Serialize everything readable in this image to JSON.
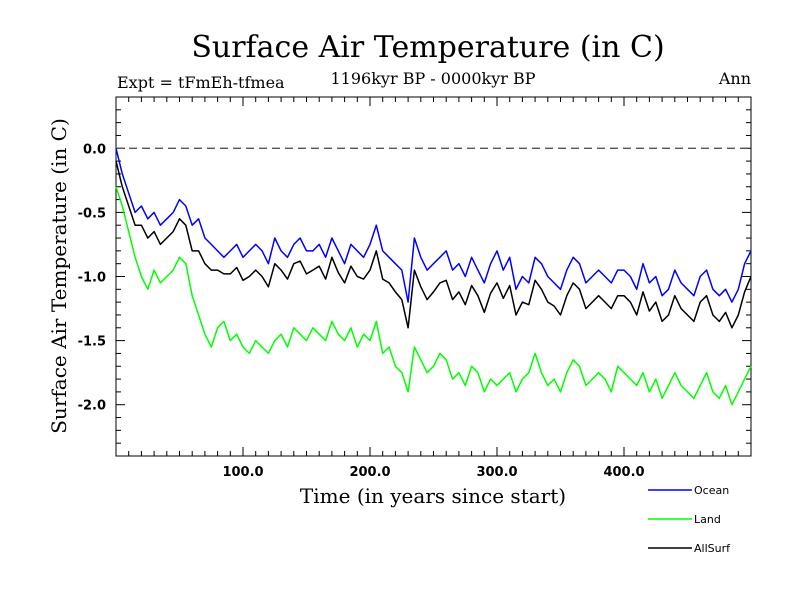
{
  "chart_data": {
    "type": "line",
    "title": "Surface Air Temperature (in C)",
    "subtitle_left": "Expt = tFmEh-tfmea",
    "subtitle_center": "1196kyr BP - 0000kyr BP",
    "subtitle_right": "Ann",
    "xlabel": "Time (in years since start)",
    "ylabel": "Surface Air Temperature (in C)",
    "xlim": [
      0,
      500
    ],
    "ylim": [
      -2.4,
      0.4
    ],
    "x_ticks": [
      100,
      200,
      300,
      400
    ],
    "x_tick_labels": [
      "100.0",
      "200.0",
      "300.0",
      "400.0"
    ],
    "y_ticks": [
      0,
      -0.5,
      -1,
      -1.5,
      -2
    ],
    "y_tick_labels": [
      "0.0",
      "-0.5",
      "-1.0",
      "-1.5",
      "-2.0"
    ],
    "reference_line": {
      "y": 0,
      "style": "dashed"
    },
    "x": [
      0,
      5,
      10,
      15,
      20,
      25,
      30,
      35,
      40,
      45,
      50,
      55,
      60,
      65,
      70,
      75,
      80,
      85,
      90,
      95,
      100,
      105,
      110,
      115,
      120,
      125,
      130,
      135,
      140,
      145,
      150,
      155,
      160,
      165,
      170,
      175,
      180,
      185,
      190,
      195,
      200,
      205,
      210,
      215,
      220,
      225,
      230,
      235,
      240,
      245,
      250,
      255,
      260,
      265,
      270,
      275,
      280,
      285,
      290,
      295,
      300,
      305,
      310,
      315,
      320,
      325,
      330,
      335,
      340,
      345,
      350,
      355,
      360,
      365,
      370,
      375,
      380,
      385,
      390,
      395,
      400,
      405,
      410,
      415,
      420,
      425,
      430,
      435,
      440,
      445,
      450,
      455,
      460,
      465,
      470,
      475,
      480,
      485,
      490,
      495,
      500
    ],
    "series": [
      {
        "name": "Ocean",
        "color": "#0000ff",
        "values": [
          0.0,
          -0.2,
          -0.35,
          -0.5,
          -0.45,
          -0.55,
          -0.5,
          -0.6,
          -0.55,
          -0.5,
          -0.4,
          -0.45,
          -0.6,
          -0.55,
          -0.7,
          -0.75,
          -0.8,
          -0.85,
          -0.8,
          -0.75,
          -0.85,
          -0.8,
          -0.75,
          -0.8,
          -0.9,
          -0.7,
          -0.8,
          -0.85,
          -0.75,
          -0.7,
          -0.8,
          -0.8,
          -0.75,
          -0.85,
          -0.7,
          -0.8,
          -0.9,
          -0.75,
          -0.8,
          -0.85,
          -0.75,
          -0.6,
          -0.8,
          -0.85,
          -0.9,
          -0.95,
          -1.2,
          -0.7,
          -0.85,
          -0.95,
          -0.9,
          -0.85,
          -0.8,
          -0.95,
          -0.9,
          -1.0,
          -0.85,
          -0.95,
          -1.05,
          -0.9,
          -0.8,
          -0.95,
          -0.85,
          -1.1,
          -1.0,
          -1.05,
          -0.85,
          -0.9,
          -1.0,
          -1.05,
          -1.1,
          -0.95,
          -0.85,
          -0.9,
          -1.05,
          -1.0,
          -0.95,
          -1.0,
          -1.05,
          -0.95,
          -0.95,
          -1.0,
          -1.1,
          -0.9,
          -1.05,
          -1.0,
          -1.15,
          -1.1,
          -0.95,
          -1.05,
          -1.1,
          -1.15,
          -1.0,
          -0.95,
          -1.1,
          -1.15,
          -1.1,
          -1.2,
          -1.1,
          -0.9,
          -0.8
        ]
      },
      {
        "name": "Land",
        "color": "#00ff00",
        "values": [
          -0.3,
          -0.45,
          -0.65,
          -0.85,
          -1.0,
          -1.1,
          -0.95,
          -1.05,
          -1.0,
          -0.95,
          -0.85,
          -0.9,
          -1.15,
          -1.3,
          -1.45,
          -1.55,
          -1.4,
          -1.35,
          -1.5,
          -1.45,
          -1.55,
          -1.6,
          -1.5,
          -1.55,
          -1.6,
          -1.5,
          -1.45,
          -1.55,
          -1.4,
          -1.45,
          -1.5,
          -1.4,
          -1.45,
          -1.5,
          -1.35,
          -1.45,
          -1.5,
          -1.4,
          -1.55,
          -1.45,
          -1.5,
          -1.35,
          -1.6,
          -1.55,
          -1.7,
          -1.75,
          -1.9,
          -1.55,
          -1.65,
          -1.75,
          -1.7,
          -1.6,
          -1.65,
          -1.8,
          -1.75,
          -1.85,
          -1.7,
          -1.75,
          -1.9,
          -1.8,
          -1.85,
          -1.8,
          -1.75,
          -1.9,
          -1.8,
          -1.75,
          -1.6,
          -1.75,
          -1.85,
          -1.8,
          -1.9,
          -1.75,
          -1.65,
          -1.7,
          -1.85,
          -1.8,
          -1.75,
          -1.8,
          -1.9,
          -1.7,
          -1.75,
          -1.8,
          -1.85,
          -1.75,
          -1.9,
          -1.8,
          -1.95,
          -1.85,
          -1.75,
          -1.85,
          -1.9,
          -1.95,
          -1.85,
          -1.75,
          -1.9,
          -1.95,
          -1.85,
          -2.0,
          -1.9,
          -1.8,
          -1.7
        ]
      },
      {
        "name": "AllSurf",
        "color": "#000000",
        "values": [
          -0.1,
          -0.3,
          -0.45,
          -0.6,
          -0.6,
          -0.7,
          -0.65,
          -0.75,
          -0.7,
          -0.65,
          -0.55,
          -0.6,
          -0.8,
          -0.8,
          -0.9,
          -0.95,
          -0.95,
          -0.98,
          -0.98,
          -0.93,
          -1.03,
          -1.0,
          -0.95,
          -1.0,
          -1.08,
          -0.9,
          -0.95,
          -1.02,
          -0.9,
          -0.88,
          -0.98,
          -0.95,
          -0.92,
          -1.02,
          -0.85,
          -0.97,
          -1.05,
          -0.92,
          -1.0,
          -1.02,
          -0.95,
          -0.8,
          -1.02,
          -1.05,
          -1.12,
          -1.18,
          -1.4,
          -0.95,
          -1.08,
          -1.18,
          -1.12,
          -1.05,
          -1.03,
          -1.18,
          -1.12,
          -1.22,
          -1.07,
          -1.15,
          -1.28,
          -1.13,
          -1.05,
          -1.17,
          -1.07,
          -1.3,
          -1.2,
          -1.22,
          -1.03,
          -1.1,
          -1.2,
          -1.23,
          -1.3,
          -1.15,
          -1.05,
          -1.1,
          -1.25,
          -1.2,
          -1.15,
          -1.2,
          -1.25,
          -1.15,
          -1.15,
          -1.2,
          -1.3,
          -1.12,
          -1.27,
          -1.2,
          -1.35,
          -1.3,
          -1.15,
          -1.25,
          -1.3,
          -1.35,
          -1.2,
          -1.15,
          -1.3,
          -1.35,
          -1.28,
          -1.4,
          -1.3,
          -1.12,
          -1.0
        ]
      }
    ],
    "legend_position": "bottom-right"
  }
}
